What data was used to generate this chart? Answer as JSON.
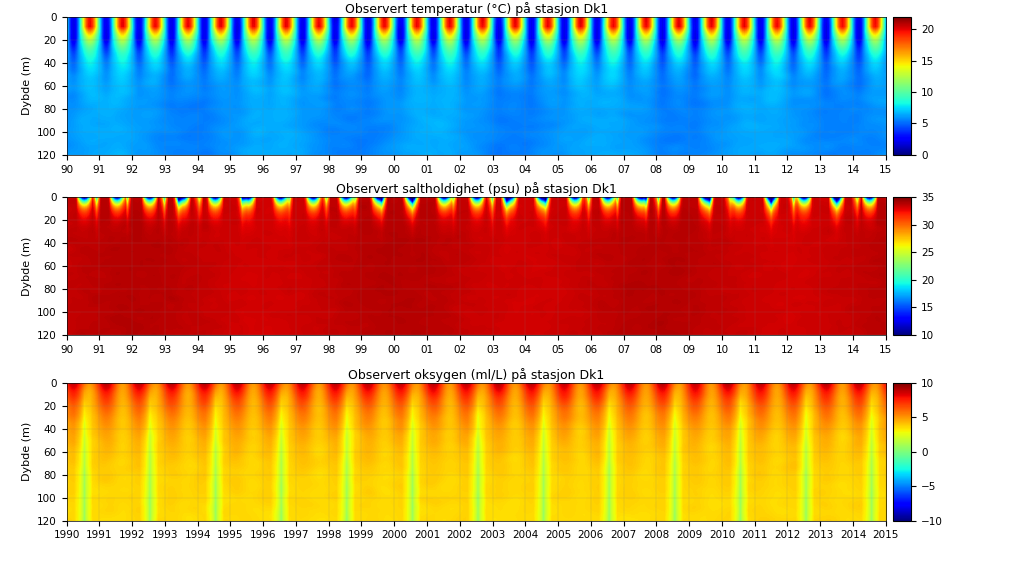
{
  "title1": "Observert temperatur (°C) på stasjon Dk1",
  "title2": "Observert saltholdighet (psu) på stasjon Dk1",
  "title3": "Observert oksygen (ml/L) på stasjon Dk1",
  "ylabel": "Dybde (m)",
  "year_start": 1990,
  "year_end": 2015,
  "depth_min": 0,
  "depth_max": 120,
  "temp_min": 0,
  "temp_max": 22,
  "salt_min": 10,
  "salt_max": 35,
  "oxy_min": -10,
  "oxy_max": 10,
  "yticks": [
    0,
    20,
    40,
    60,
    80,
    100,
    120
  ],
  "temp_cbar_ticks": [
    0,
    5,
    10,
    15,
    20
  ],
  "salt_cbar_ticks": [
    10,
    15,
    20,
    25,
    30,
    35
  ],
  "oxy_cbar_ticks": [
    -10,
    -5,
    0,
    5,
    10
  ],
  "xtick_labels_short": [
    "90",
    "91",
    "92",
    "93",
    "94",
    "95",
    "96",
    "97",
    "98",
    "99",
    "00",
    "01",
    "02",
    "03",
    "04",
    "05",
    "06",
    "07",
    "08",
    "09",
    "10",
    "11",
    "12",
    "13",
    "14",
    "15"
  ],
  "xtick_labels_full": [
    "1990",
    "1991",
    "1992",
    "1993",
    "1994",
    "1995",
    "1996",
    "1997",
    "1998",
    "1999",
    "2000",
    "2001",
    "2002",
    "2003",
    "2004",
    "2005",
    "2006",
    "2007",
    "2008",
    "2009",
    "2010",
    "2011",
    "2012",
    "2013",
    "2014",
    "2015"
  ],
  "n_time": 400,
  "n_depth": 80,
  "background_color": "#ffffff",
  "title_fontsize": 9,
  "tick_fontsize": 7.5,
  "label_fontsize": 8
}
